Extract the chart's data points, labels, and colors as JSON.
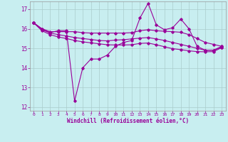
{
  "xlabel": "Windchill (Refroidissement éolien,°C)",
  "xlim": [
    -0.5,
    23.5
  ],
  "ylim": [
    11.8,
    17.4
  ],
  "yticks": [
    12,
    13,
    14,
    15,
    16,
    17
  ],
  "xticks": [
    0,
    1,
    2,
    3,
    4,
    5,
    6,
    7,
    8,
    9,
    10,
    11,
    12,
    13,
    14,
    15,
    16,
    17,
    18,
    19,
    20,
    21,
    22,
    23
  ],
  "bg_color": "#c8eef0",
  "line_color": "#990099",
  "grid_color": "#aacccc",
  "line1": [
    16.3,
    16.0,
    15.8,
    15.9,
    15.9,
    12.3,
    14.0,
    14.45,
    14.45,
    14.65,
    15.1,
    15.3,
    15.4,
    16.55,
    17.3,
    16.2,
    15.95,
    16.05,
    16.5,
    16.0,
    15.1,
    14.9,
    14.9,
    15.1
  ],
  "line2": [
    16.3,
    16.0,
    15.85,
    15.85,
    15.85,
    15.85,
    15.8,
    15.78,
    15.78,
    15.78,
    15.78,
    15.78,
    15.8,
    15.9,
    15.95,
    15.9,
    15.87,
    15.85,
    15.82,
    15.7,
    15.5,
    15.3,
    15.2,
    15.1
  ],
  "line3": [
    16.3,
    15.95,
    15.78,
    15.7,
    15.63,
    15.55,
    15.5,
    15.45,
    15.4,
    15.38,
    15.42,
    15.44,
    15.48,
    15.52,
    15.55,
    15.48,
    15.4,
    15.3,
    15.2,
    15.1,
    15.0,
    14.9,
    14.9,
    15.05
  ],
  "line4": [
    16.3,
    15.9,
    15.7,
    15.58,
    15.5,
    15.4,
    15.33,
    15.28,
    15.23,
    15.18,
    15.17,
    15.17,
    15.18,
    15.25,
    15.27,
    15.18,
    15.08,
    14.98,
    14.93,
    14.87,
    14.83,
    14.82,
    14.83,
    15.03
  ]
}
